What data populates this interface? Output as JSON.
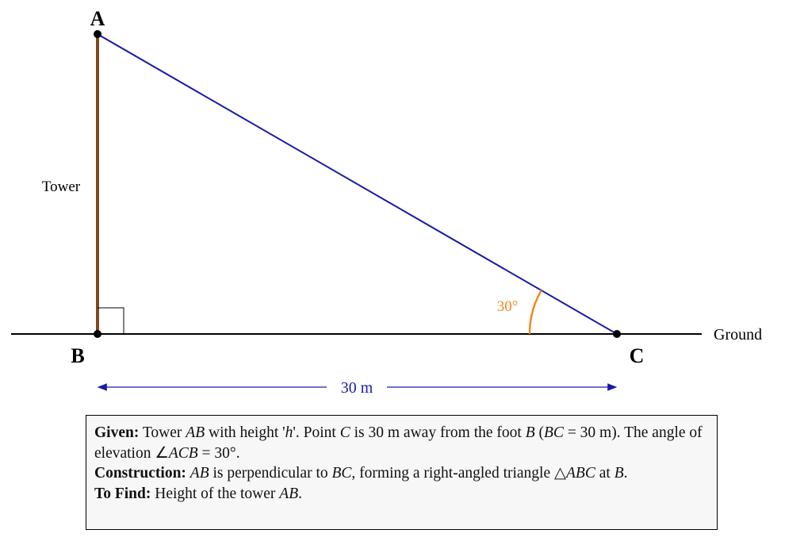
{
  "diagram": {
    "points": {
      "A": "A",
      "B": "B",
      "C": "C"
    },
    "tower_label": "Tower",
    "angle_label": "30°",
    "ground_label": "Ground",
    "distance_label": "30 m"
  },
  "info_box": {
    "given": {
      "label": "Given:",
      "parts": [
        " Tower ",
        "AB",
        " with height '",
        "h",
        "'. Point ",
        "C",
        " is 30 m away from the foot ",
        "B",
        " (",
        "BC",
        " = 30 m). The angle of elevation ∠",
        "ACB",
        " = 30°."
      ]
    },
    "construction": {
      "label": "Construction:",
      "parts": [
        " ",
        "AB",
        " is perpendicular to ",
        "BC",
        ", forming a right-angled triangle △",
        "ABC",
        " at ",
        "B",
        "."
      ]
    },
    "to_find": {
      "label": "To Find:",
      "parts": [
        " Height of the tower ",
        "AB",
        "."
      ]
    }
  }
}
